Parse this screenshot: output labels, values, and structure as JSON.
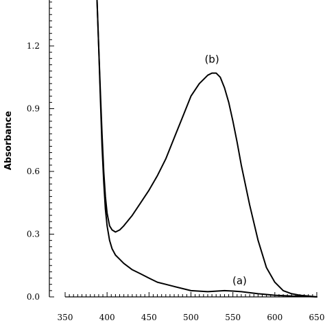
{
  "chart_data": {
    "type": "line",
    "title": "",
    "xlabel": "",
    "ylabel": "Absorbance",
    "xlim": [
      350,
      650
    ],
    "ylim": [
      0,
      1.4
    ],
    "x_ticks": [
      350,
      400,
      450,
      500,
      550,
      600,
      650
    ],
    "y_ticks": [
      0.0,
      0.3,
      0.6,
      0.9,
      1.2
    ],
    "y_tick_labels": [
      "0.0",
      "0.3",
      "0.6",
      "0.9",
      "1.2"
    ],
    "x_tick_labels": [
      "350",
      "400",
      "450",
      "500",
      "550",
      "600",
      "650"
    ],
    "x_minor_step": 5,
    "y_minor_step": 0.03,
    "grid": false,
    "series": [
      {
        "name": "(a)",
        "x": [
          388,
          390,
          392,
          394,
          396,
          398,
          400,
          403,
          406,
          410,
          415,
          420,
          430,
          440,
          450,
          460,
          470,
          480,
          500,
          520,
          540,
          550,
          560,
          580,
          600,
          620,
          640,
          650
        ],
        "y": [
          1.43,
          1.2,
          0.95,
          0.72,
          0.55,
          0.42,
          0.34,
          0.27,
          0.23,
          0.2,
          0.18,
          0.16,
          0.13,
          0.11,
          0.09,
          0.07,
          0.06,
          0.05,
          0.03,
          0.025,
          0.03,
          0.028,
          0.025,
          0.015,
          0.008,
          0.004,
          0.002,
          0.0
        ]
      },
      {
        "name": "(b)",
        "x": [
          388,
          390,
          392,
          394,
          396,
          398,
          400,
          403,
          406,
          410,
          415,
          420,
          430,
          440,
          450,
          460,
          470,
          480,
          490,
          500,
          510,
          520,
          525,
          530,
          535,
          540,
          545,
          550,
          555,
          560,
          570,
          580,
          590,
          600,
          610,
          620,
          630,
          640,
          650
        ],
        "y": [
          1.43,
          1.2,
          0.98,
          0.78,
          0.6,
          0.48,
          0.4,
          0.34,
          0.32,
          0.31,
          0.32,
          0.34,
          0.39,
          0.45,
          0.51,
          0.58,
          0.66,
          0.76,
          0.86,
          0.96,
          1.02,
          1.06,
          1.07,
          1.07,
          1.05,
          1.0,
          0.93,
          0.84,
          0.74,
          0.63,
          0.44,
          0.27,
          0.14,
          0.07,
          0.03,
          0.015,
          0.008,
          0.004,
          0.0
        ]
      }
    ],
    "annotations": [
      {
        "text": "(b)",
        "x": 525,
        "y": 1.12
      },
      {
        "text": "(a)",
        "x": 558,
        "y": 0.06
      }
    ]
  }
}
